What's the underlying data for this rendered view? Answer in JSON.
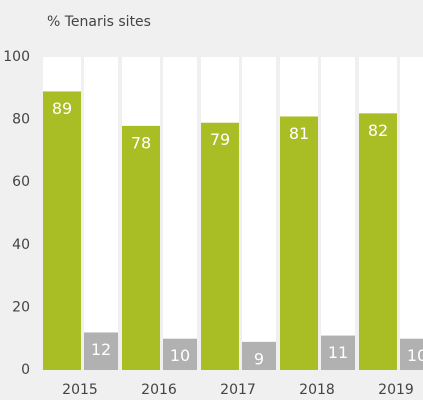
{
  "chart_data": {
    "type": "bar",
    "subtitle": "% Tenaris sites",
    "categories": [
      "2015",
      "2016",
      "2017",
      "2018",
      "2019"
    ],
    "series": [
      {
        "color": "#a9bd24",
        "values": [
          89,
          78,
          79,
          81,
          82
        ]
      },
      {
        "color": "#b1b1b1",
        "values": [
          12,
          10,
          9,
          11,
          10
        ]
      }
    ],
    "ylim": [
      0,
      100
    ],
    "yticks": [
      0,
      20,
      40,
      60,
      80,
      100
    ],
    "grid": false
  }
}
